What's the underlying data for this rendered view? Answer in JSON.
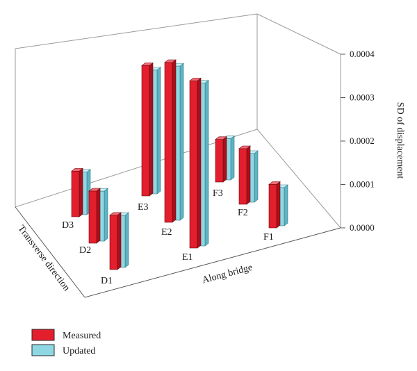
{
  "chart_data": {
    "type": "bar",
    "categories": [
      "D1",
      "D2",
      "D3",
      "E1",
      "E2",
      "E3",
      "F1",
      "F2",
      "F3"
    ],
    "series": [
      {
        "name": "Measured",
        "values": [
          0.000125,
          0.00012,
          0.000105,
          0.000385,
          0.000368,
          0.0003,
          0.0001,
          0.000128,
          9.8e-05
        ]
      },
      {
        "name": "Updated",
        "values": [
          0.00012,
          0.000115,
          9.8e-05,
          0.000375,
          0.000355,
          0.000285,
          8.8e-05,
          0.000112,
          9.5e-05
        ]
      }
    ],
    "ylabel": "SD of displacement",
    "xlabel": "Along bridge",
    "zlabel": "Transverse direction",
    "ylim": [
      0,
      0.0004
    ],
    "yticks": [
      "0.0000",
      "0.0001",
      "0.0002",
      "0.0003",
      "0.0004"
    ],
    "grid": false,
    "legend_position": "bottom-left",
    "colors": {
      "Measured": "#e31e2d",
      "Updated": "#8fd8e3"
    }
  }
}
